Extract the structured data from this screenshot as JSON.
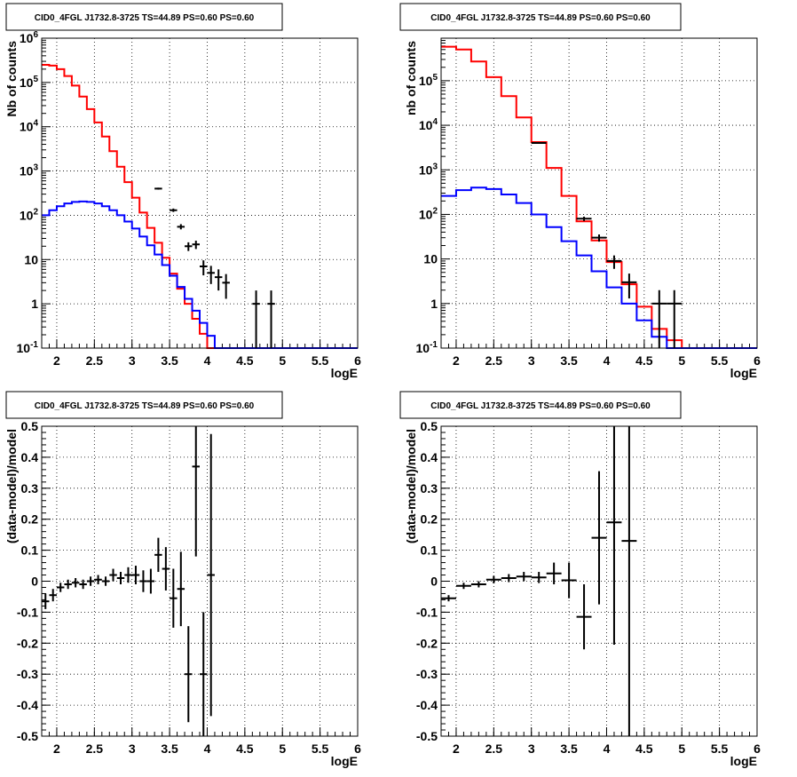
{
  "chart_data": [
    {
      "type": "line",
      "title": "CID0_4FGL J1732.8-3725 TS=44.89 PS=0.60 PS=0.60",
      "xlabel": "logE",
      "ylabel": "Nb of counts",
      "xlim": [
        1.8,
        6.0
      ],
      "ylim": [
        0.1,
        1000000
      ],
      "yscale": "log",
      "grid": true,
      "x_ticks": [
        "2",
        "2.5",
        "3",
        "3.5",
        "4",
        "4.5",
        "5",
        "5.5",
        "6"
      ],
      "y_ticks": [
        "10^-1",
        "1",
        "10",
        "10^2",
        "10^3",
        "10^4",
        "10^5",
        "10^6"
      ],
      "series": [
        {
          "color": "#ff0000",
          "style": "step",
          "bin_edges": [
            1.8,
            1.9,
            2.0,
            2.1,
            2.2,
            2.3,
            2.4,
            2.5,
            2.6,
            2.7,
            2.8,
            2.9,
            3.0,
            3.1,
            3.2,
            3.3,
            3.4,
            3.5,
            3.6,
            3.7,
            3.8,
            3.9,
            4.0,
            4.1,
            4.2,
            4.3,
            4.4,
            4.5,
            4.6,
            4.7,
            4.8,
            4.9,
            5.0,
            5.1,
            5.2,
            5.3,
            5.4,
            5.5,
            5.6,
            5.7,
            5.8,
            5.9,
            6.0
          ],
          "values": [
            250000,
            240000,
            200000,
            140000,
            85000,
            48000,
            25000,
            12500,
            6000,
            2800,
            1250,
            560,
            250,
            115,
            52,
            24,
            11,
            4.8,
            2.2,
            1.0,
            0.46,
            0.21,
            0.1,
            0.1,
            0.1,
            0.1,
            0.1,
            0.1,
            0.1,
            0.1,
            0.1,
            0.1,
            0.1,
            0.1,
            0.1,
            0.1,
            0.1,
            0.1,
            0.1,
            0.1,
            0.1,
            0.1
          ]
        },
        {
          "color": "#0000ff",
          "style": "step",
          "bin_edges": [
            1.8,
            1.9,
            2.0,
            2.1,
            2.2,
            2.3,
            2.4,
            2.5,
            2.6,
            2.7,
            2.8,
            2.9,
            3.0,
            3.1,
            3.2,
            3.3,
            3.4,
            3.5,
            3.6,
            3.7,
            3.8,
            3.9,
            4.0,
            4.1,
            4.2,
            4.3,
            4.4,
            4.5,
            4.6,
            4.7,
            4.8,
            4.9,
            5.0,
            5.1,
            5.2,
            5.3,
            5.4,
            5.5,
            5.6,
            5.7,
            5.8,
            5.9,
            6.0
          ],
          "values": [
            100,
            130,
            160,
            185,
            200,
            205,
            200,
            185,
            160,
            130,
            100,
            72,
            50,
            33,
            21,
            13,
            7.5,
            4.3,
            2.4,
            1.3,
            0.7,
            0.37,
            0.19,
            0.1,
            0.1,
            0.1,
            0.1,
            0.1,
            0.1,
            0.1,
            0.1,
            0.1,
            0.1,
            0.1,
            0.1,
            0.1,
            0.1,
            0.1,
            0.1,
            0.1,
            0.1,
            0.1
          ]
        },
        {
          "color": "#000000",
          "style": "errorbar",
          "points": [
            {
              "x": 3.35,
              "y": 400,
              "xerr": 0.05,
              "ylo": 380,
              "yhi": 420
            },
            {
              "x": 3.55,
              "y": 130,
              "xerr": 0.05,
              "ylo": 119,
              "yhi": 142
            },
            {
              "x": 3.65,
              "y": 55,
              "xerr": 0.05,
              "ylo": 48,
              "yhi": 63
            },
            {
              "x": 3.75,
              "y": 20,
              "xerr": 0.05,
              "ylo": 15.6,
              "yhi": 24.5
            },
            {
              "x": 3.85,
              "y": 22,
              "xerr": 0.05,
              "ylo": 17.3,
              "yhi": 26.7
            },
            {
              "x": 3.95,
              "y": 7,
              "xerr": 0.05,
              "ylo": 4.4,
              "yhi": 9.6
            },
            {
              "x": 4.05,
              "y": 5,
              "xerr": 0.05,
              "ylo": 2.8,
              "yhi": 7.2
            },
            {
              "x": 4.15,
              "y": 4,
              "xerr": 0.05,
              "ylo": 2.0,
              "yhi": 6.0
            },
            {
              "x": 4.25,
              "y": 3,
              "xerr": 0.05,
              "ylo": 1.3,
              "yhi": 4.7
            },
            {
              "x": 4.65,
              "y": 1,
              "xerr": 0.05,
              "ylo": 0.1,
              "yhi": 2.0
            },
            {
              "x": 4.85,
              "y": 1,
              "xerr": 0.05,
              "ylo": 0.1,
              "yhi": 2.0
            }
          ]
        }
      ]
    },
    {
      "type": "line",
      "title": "CID0_4FGL J1732.8-3725 TS=44.89 PS=0.60 PS=0.60",
      "xlabel": "logE",
      "ylabel": "nb of counts",
      "xlim": [
        1.8,
        6.0
      ],
      "ylim": [
        0.1,
        900000
      ],
      "yscale": "log",
      "grid": true,
      "x_ticks": [
        "2",
        "2.5",
        "3",
        "3.5",
        "4",
        "4.5",
        "5",
        "5.5",
        "6"
      ],
      "y_ticks": [
        "10^-1",
        "1",
        "10",
        "10^2",
        "10^3",
        "10^4",
        "10^5"
      ],
      "series": [
        {
          "color": "#ff0000",
          "style": "step",
          "bin_edges": [
            1.8,
            2.0,
            2.2,
            2.4,
            2.6,
            2.8,
            3.0,
            3.2,
            3.4,
            3.6,
            3.8,
            4.0,
            4.2,
            4.4,
            4.6,
            4.8,
            5.0,
            5.2,
            5.4,
            5.6,
            5.8,
            6.0
          ],
          "values": [
            580000,
            500000,
            270000,
            120000,
            45000,
            15000,
            4200,
            1100,
            260,
            70,
            26,
            8.5,
            2.7,
            0.85,
            0.27,
            0.15,
            0.1,
            0.1,
            0.1,
            0.1,
            0.1
          ]
        },
        {
          "color": "#0000ff",
          "style": "step",
          "bin_edges": [
            1.8,
            2.0,
            2.2,
            2.4,
            2.6,
            2.8,
            3.0,
            3.2,
            3.4,
            3.6,
            3.8,
            4.0,
            4.2,
            4.4,
            4.6,
            4.8,
            5.0,
            5.2,
            5.4,
            5.6,
            5.8,
            6.0
          ],
          "values": [
            260,
            350,
            400,
            370,
            280,
            180,
            100,
            52,
            25,
            12,
            5.3,
            2.3,
            1.0,
            0.42,
            0.18,
            0.1,
            0.1,
            0.1,
            0.1,
            0.1,
            0.1
          ]
        },
        {
          "color": "#000000",
          "style": "errorbar",
          "points": [
            {
              "x": 3.1,
              "y": 4000,
              "xerr": 0.1,
              "ylo": 3900,
              "yhi": 4100
            },
            {
              "x": 3.7,
              "y": 80,
              "xerr": 0.1,
              "ylo": 71,
              "yhi": 89
            },
            {
              "x": 3.9,
              "y": 30,
              "xerr": 0.1,
              "ylo": 24.5,
              "yhi": 35.5
            },
            {
              "x": 4.1,
              "y": 9,
              "xerr": 0.1,
              "ylo": 6,
              "yhi": 12
            },
            {
              "x": 4.3,
              "y": 3,
              "xerr": 0.1,
              "ylo": 1.3,
              "yhi": 4.7
            },
            {
              "x": 4.7,
              "y": 1,
              "xerr": 0.1,
              "ylo": 0.1,
              "yhi": 2.0
            },
            {
              "x": 4.9,
              "y": 1,
              "xerr": 0.1,
              "ylo": 0.1,
              "yhi": 2.0
            }
          ]
        }
      ]
    },
    {
      "type": "scatter",
      "title": "CID0_4FGL J1732.8-3725 TS=44.89 PS=0.60 PS=0.60",
      "xlabel": "logE",
      "ylabel": "(data-model)/model",
      "xlim": [
        1.8,
        6.0
      ],
      "ylim": [
        -0.5,
        0.5
      ],
      "yscale": "linear",
      "grid": true,
      "x_ticks": [
        "2",
        "2.5",
        "3",
        "3.5",
        "4",
        "4.5",
        "5",
        "5.5",
        "6"
      ],
      "y_ticks": [
        "-0.5",
        "-0.4",
        "-0.3",
        "-0.2",
        "-0.1",
        "0",
        "0.1",
        "0.2",
        "0.3",
        "0.4",
        "0.5"
      ],
      "series": [
        {
          "color": "#000000",
          "style": "errorbar",
          "points": [
            {
              "x": 1.85,
              "y": -0.065,
              "xerr": 0.05,
              "ylo": -0.09,
              "yhi": -0.04
            },
            {
              "x": 1.95,
              "y": -0.045,
              "xerr": 0.05,
              "ylo": -0.065,
              "yhi": -0.025
            },
            {
              "x": 2.05,
              "y": -0.02,
              "xerr": 0.05,
              "ylo": -0.035,
              "yhi": -0.005
            },
            {
              "x": 2.15,
              "y": -0.01,
              "xerr": 0.05,
              "ylo": -0.025,
              "yhi": 0.005
            },
            {
              "x": 2.25,
              "y": -0.005,
              "xerr": 0.05,
              "ylo": -0.02,
              "yhi": 0.01
            },
            {
              "x": 2.35,
              "y": -0.01,
              "xerr": 0.05,
              "ylo": -0.025,
              "yhi": 0.005
            },
            {
              "x": 2.45,
              "y": 0.0,
              "xerr": 0.05,
              "ylo": -0.015,
              "yhi": 0.015
            },
            {
              "x": 2.55,
              "y": 0.005,
              "xerr": 0.05,
              "ylo": -0.01,
              "yhi": 0.02
            },
            {
              "x": 2.65,
              "y": 0.0,
              "xerr": 0.05,
              "ylo": -0.015,
              "yhi": 0.015
            },
            {
              "x": 2.75,
              "y": 0.02,
              "xerr": 0.05,
              "ylo": 0.0,
              "yhi": 0.04
            },
            {
              "x": 2.85,
              "y": 0.01,
              "xerr": 0.05,
              "ylo": -0.01,
              "yhi": 0.03
            },
            {
              "x": 2.95,
              "y": 0.02,
              "xerr": 0.05,
              "ylo": -0.005,
              "yhi": 0.045
            },
            {
              "x": 3.05,
              "y": 0.02,
              "xerr": 0.05,
              "ylo": -0.01,
              "yhi": 0.05
            },
            {
              "x": 3.15,
              "y": 0.0,
              "xerr": 0.05,
              "ylo": -0.035,
              "yhi": 0.035
            },
            {
              "x": 3.25,
              "y": 0.0,
              "xerr": 0.05,
              "ylo": -0.04,
              "yhi": 0.04
            },
            {
              "x": 3.35,
              "y": 0.085,
              "xerr": 0.05,
              "ylo": 0.03,
              "yhi": 0.14
            },
            {
              "x": 3.45,
              "y": 0.04,
              "xerr": 0.05,
              "ylo": -0.03,
              "yhi": 0.11
            },
            {
              "x": 3.55,
              "y": -0.055,
              "xerr": 0.05,
              "ylo": -0.15,
              "yhi": 0.04
            },
            {
              "x": 3.65,
              "y": -0.025,
              "xerr": 0.05,
              "ylo": -0.145,
              "yhi": 0.095
            },
            {
              "x": 3.75,
              "y": -0.3,
              "xerr": 0.05,
              "ylo": -0.455,
              "yhi": -0.145
            },
            {
              "x": 3.85,
              "y": 0.37,
              "xerr": 0.05,
              "ylo": 0.08,
              "yhi": 0.5
            },
            {
              "x": 3.95,
              "y": -0.3,
              "xerr": 0.05,
              "ylo": -0.5,
              "yhi": -0.1
            },
            {
              "x": 4.05,
              "y": 0.02,
              "xerr": 0.05,
              "ylo": -0.435,
              "yhi": 0.475
            }
          ]
        }
      ]
    },
    {
      "type": "scatter",
      "title": "CID0_4FGL J1732.8-3725 TS=44.89 PS=0.60 PS=0.60",
      "xlabel": "logE",
      "ylabel": "(data-model)/model",
      "xlim": [
        1.8,
        6.0
      ],
      "ylim": [
        -0.5,
        0.5
      ],
      "yscale": "linear",
      "grid": true,
      "x_ticks": [
        "2",
        "2.5",
        "3",
        "3.5",
        "4",
        "4.5",
        "5",
        "5.5",
        "6"
      ],
      "y_ticks": [
        "-0.5",
        "-0.4",
        "-0.3",
        "-0.2",
        "-0.1",
        "0",
        "0.1",
        "0.2",
        "0.3",
        "0.4",
        "0.5"
      ],
      "series": [
        {
          "color": "#000000",
          "style": "errorbar",
          "points": [
            {
              "x": 1.9,
              "y": -0.055,
              "xerr": 0.1,
              "ylo": -0.065,
              "yhi": -0.045
            },
            {
              "x": 2.1,
              "y": -0.015,
              "xerr": 0.1,
              "ylo": -0.025,
              "yhi": -0.005
            },
            {
              "x": 2.3,
              "y": -0.01,
              "xerr": 0.1,
              "ylo": -0.02,
              "yhi": 0.0
            },
            {
              "x": 2.5,
              "y": 0.005,
              "xerr": 0.1,
              "ylo": -0.007,
              "yhi": 0.017
            },
            {
              "x": 2.7,
              "y": 0.01,
              "xerr": 0.1,
              "ylo": -0.003,
              "yhi": 0.023
            },
            {
              "x": 2.9,
              "y": 0.015,
              "xerr": 0.1,
              "ylo": 0.0,
              "yhi": 0.03
            },
            {
              "x": 3.1,
              "y": 0.012,
              "xerr": 0.1,
              "ylo": -0.006,
              "yhi": 0.03
            },
            {
              "x": 3.3,
              "y": 0.025,
              "xerr": 0.1,
              "ylo": -0.01,
              "yhi": 0.06
            },
            {
              "x": 3.5,
              "y": 0.003,
              "xerr": 0.1,
              "ylo": -0.055,
              "yhi": 0.06
            },
            {
              "x": 3.7,
              "y": -0.115,
              "xerr": 0.1,
              "ylo": -0.22,
              "yhi": -0.01
            },
            {
              "x": 3.9,
              "y": 0.14,
              "xerr": 0.1,
              "ylo": -0.075,
              "yhi": 0.355
            },
            {
              "x": 4.1,
              "y": 0.19,
              "xerr": 0.1,
              "ylo": -0.205,
              "yhi": 0.5
            },
            {
              "x": 4.3,
              "y": 0.13,
              "xerr": 0.1,
              "ylo": -0.5,
              "yhi": 0.5
            }
          ]
        }
      ]
    }
  ]
}
